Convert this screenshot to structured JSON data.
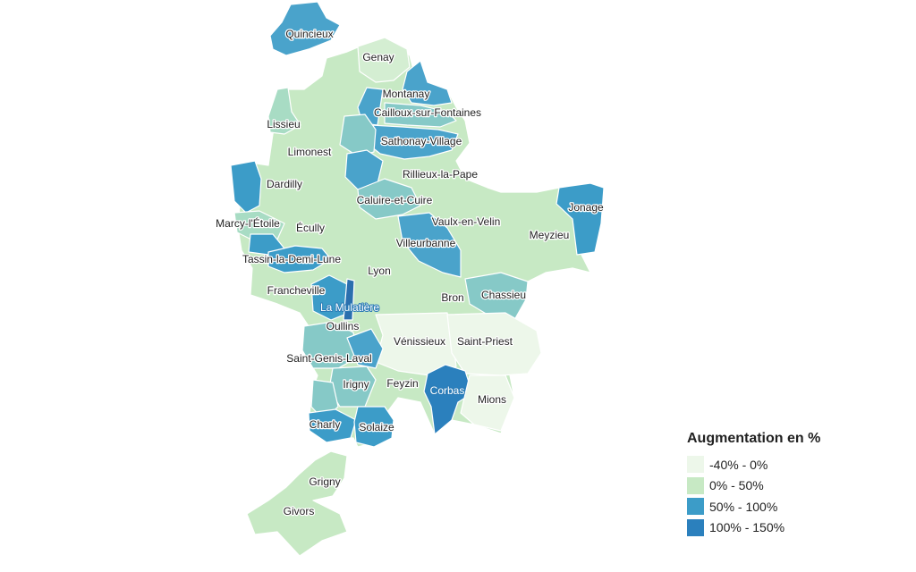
{
  "legend": {
    "title": "Augmentation en %",
    "items": [
      {
        "label": "-40% - 0%",
        "color": "#edf7ea"
      },
      {
        "label": "0% - 50%",
        "color": "#c7e9c4"
      },
      {
        "label": "50% - 100%",
        "color": "#3c9cc8"
      },
      {
        "label": "100% - 150%",
        "color": "#2b80bd"
      }
    ]
  },
  "map_fill_colors": {
    "light": "#edf7ea",
    "pale": "#d4eed2",
    "mint": "#a8dcc4",
    "teal": "#86c9c7",
    "mid_blue": "#4aa3cb",
    "blue": "#3c9cc8",
    "dark_blue": "#2b80bd"
  },
  "communes": [
    {
      "name": "Quincieux",
      "tint": "mid_blue"
    },
    {
      "name": "Genay",
      "tint": "pale"
    },
    {
      "name": "Montanay",
      "tint": "mid_blue"
    },
    {
      "name": "Cailloux-sur-Fontaines",
      "tint": "teal"
    },
    {
      "name": "Lissieu",
      "tint": "mint"
    },
    {
      "name": "Sathonay-Village",
      "tint": "mid_blue"
    },
    {
      "name": "Limonest",
      "tint": "pale"
    },
    {
      "name": "Rillieux-la-Pape",
      "tint": "pale"
    },
    {
      "name": "Dardilly",
      "tint": "pale"
    },
    {
      "name": "Caluire-et-Cuire",
      "tint": "teal"
    },
    {
      "name": "Jonage",
      "tint": "blue"
    },
    {
      "name": "Marcy-l'Étoile",
      "tint": "mint"
    },
    {
      "name": "Écully",
      "tint": "pale"
    },
    {
      "name": "Vaulx-en-Velin",
      "tint": "pale"
    },
    {
      "name": "Meyzieu",
      "tint": "mint"
    },
    {
      "name": "Villeurbanne",
      "tint": "mid_blue"
    },
    {
      "name": "Tassin-la-Demi-Lune",
      "tint": "blue"
    },
    {
      "name": "Lyon",
      "tint": "mint"
    },
    {
      "name": "Francheville",
      "tint": "pale"
    },
    {
      "name": "Bron",
      "tint": "mint"
    },
    {
      "name": "Chassieu",
      "tint": "teal"
    },
    {
      "name": "La Mulatière",
      "tint": "blue"
    },
    {
      "name": "Oullins",
      "tint": "mint"
    },
    {
      "name": "Vénissieux",
      "tint": "light"
    },
    {
      "name": "Saint-Priest",
      "tint": "light"
    },
    {
      "name": "Saint-Genis-Laval",
      "tint": "teal"
    },
    {
      "name": "Irigny",
      "tint": "teal"
    },
    {
      "name": "Feyzin",
      "tint": "pale"
    },
    {
      "name": "Corbas",
      "tint": "dark_blue"
    },
    {
      "name": "Mions",
      "tint": "light"
    },
    {
      "name": "Charly",
      "tint": "blue"
    },
    {
      "name": "Solaize",
      "tint": "blue"
    },
    {
      "name": "Grigny",
      "tint": "pale"
    },
    {
      "name": "Givors",
      "tint": "mint"
    }
  ]
}
